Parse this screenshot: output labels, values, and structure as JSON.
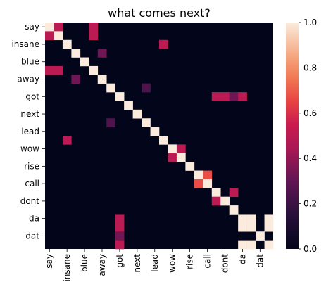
{
  "chart_data": {
    "type": "heatmap",
    "title": "what comes next?",
    "labels": [
      "say",
      "",
      "insane",
      "",
      "blue",
      "",
      "away",
      "",
      "got",
      "",
      "next",
      "",
      "lead",
      "",
      "wow",
      "",
      "rise",
      "",
      "call",
      "",
      "dont",
      "",
      "da",
      "",
      "dat",
      ""
    ],
    "labels_shown": [
      "say",
      "insane",
      "blue",
      "away",
      "got",
      "next",
      "lead",
      "wow",
      "rise",
      "call",
      "dont",
      "da",
      "dat"
    ],
    "colorbar": {
      "min": 0.0,
      "max": 1.0,
      "ticks": [
        "0.0",
        "0.2",
        "0.4",
        "0.6",
        "0.8",
        "1.0"
      ]
    },
    "cells": [
      {
        "r": 0,
        "c": 0,
        "v": 1.0
      },
      {
        "r": 0,
        "c": 1,
        "v": 0.5
      },
      {
        "r": 0,
        "c": 5,
        "v": 0.5
      },
      {
        "r": 1,
        "c": 0,
        "v": 0.5
      },
      {
        "r": 1,
        "c": 1,
        "v": 1.0
      },
      {
        "r": 1,
        "c": 5,
        "v": 0.5
      },
      {
        "r": 2,
        "c": 2,
        "v": 1.0
      },
      {
        "r": 2,
        "c": 13,
        "v": 0.5
      },
      {
        "r": 3,
        "c": 3,
        "v": 1.0
      },
      {
        "r": 3,
        "c": 6,
        "v": 0.33
      },
      {
        "r": 4,
        "c": 4,
        "v": 1.0
      },
      {
        "r": 5,
        "c": 0,
        "v": 0.5
      },
      {
        "r": 5,
        "c": 1,
        "v": 0.5
      },
      {
        "r": 5,
        "c": 5,
        "v": 1.0
      },
      {
        "r": 6,
        "c": 3,
        "v": 0.33
      },
      {
        "r": 6,
        "c": 6,
        "v": 1.0
      },
      {
        "r": 7,
        "c": 7,
        "v": 1.0
      },
      {
        "r": 7,
        "c": 11,
        "v": 0.25
      },
      {
        "r": 8,
        "c": 8,
        "v": 1.0
      },
      {
        "r": 8,
        "c": 19,
        "v": 0.5
      },
      {
        "r": 8,
        "c": 20,
        "v": 0.5
      },
      {
        "r": 8,
        "c": 21,
        "v": 0.33
      },
      {
        "r": 8,
        "c": 22,
        "v": 0.5
      },
      {
        "r": 9,
        "c": 9,
        "v": 1.0
      },
      {
        "r": 10,
        "c": 10,
        "v": 1.0
      },
      {
        "r": 11,
        "c": 7,
        "v": 0.25
      },
      {
        "r": 11,
        "c": 11,
        "v": 1.0
      },
      {
        "r": 12,
        "c": 12,
        "v": 1.0
      },
      {
        "r": 13,
        "c": 2,
        "v": 0.5
      },
      {
        "r": 13,
        "c": 13,
        "v": 1.0
      },
      {
        "r": 14,
        "c": 14,
        "v": 1.0
      },
      {
        "r": 14,
        "c": 15,
        "v": 0.5
      },
      {
        "r": 15,
        "c": 14,
        "v": 0.5
      },
      {
        "r": 15,
        "c": 15,
        "v": 1.0
      },
      {
        "r": 16,
        "c": 16,
        "v": 1.0
      },
      {
        "r": 17,
        "c": 17,
        "v": 1.0
      },
      {
        "r": 17,
        "c": 18,
        "v": 0.67
      },
      {
        "r": 18,
        "c": 17,
        "v": 0.67
      },
      {
        "r": 18,
        "c": 18,
        "v": 1.0
      },
      {
        "r": 19,
        "c": 19,
        "v": 1.0
      },
      {
        "r": 19,
        "c": 21,
        "v": 0.5
      },
      {
        "r": 20,
        "c": 19,
        "v": 0.5
      },
      {
        "r": 20,
        "c": 20,
        "v": 1.0
      },
      {
        "r": 21,
        "c": 21,
        "v": 1.0
      },
      {
        "r": 22,
        "c": 8,
        "v": 0.5
      },
      {
        "r": 22,
        "c": 22,
        "v": 1.0
      },
      {
        "r": 22,
        "c": 23,
        "v": 1.0
      },
      {
        "r": 22,
        "c": 25,
        "v": 1.0
      },
      {
        "r": 23,
        "c": 8,
        "v": 0.5
      },
      {
        "r": 23,
        "c": 22,
        "v": 1.0
      },
      {
        "r": 23,
        "c": 23,
        "v": 1.0
      },
      {
        "r": 23,
        "c": 25,
        "v": 1.0
      },
      {
        "r": 24,
        "c": 8,
        "v": 0.33
      },
      {
        "r": 24,
        "c": 24,
        "v": 1.0
      },
      {
        "r": 25,
        "c": 8,
        "v": 0.5
      },
      {
        "r": 25,
        "c": 22,
        "v": 1.0
      },
      {
        "r": 25,
        "c": 23,
        "v": 1.0
      },
      {
        "r": 25,
        "c": 25,
        "v": 1.0
      }
    ]
  }
}
